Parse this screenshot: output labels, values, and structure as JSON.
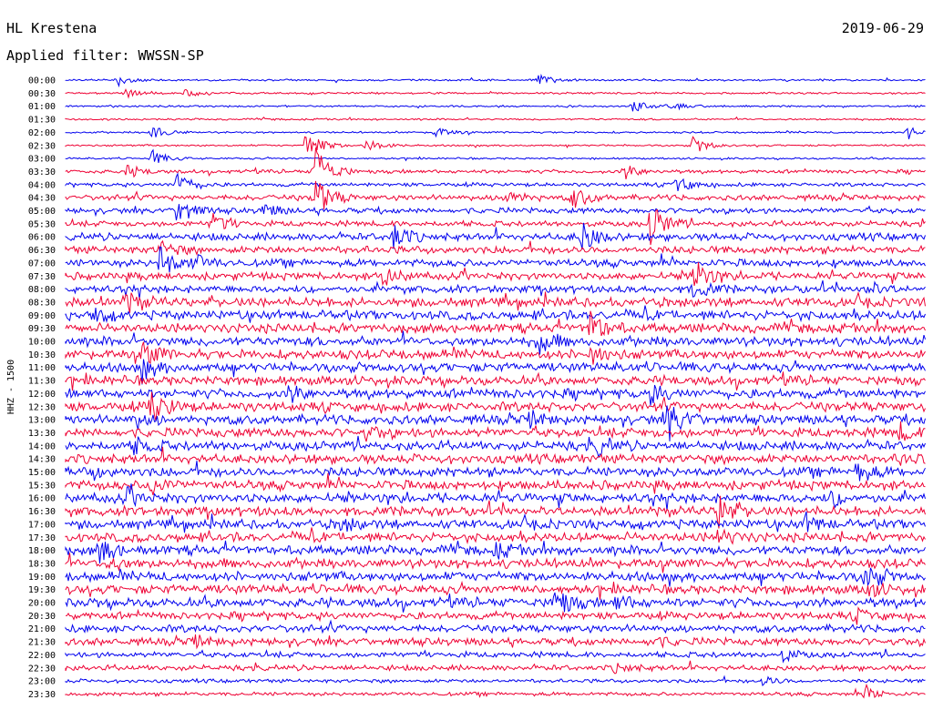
{
  "header": {
    "station": "HL Krestena",
    "date": "2019-06-29",
    "filter": "Applied filter: WWSSN-SP"
  },
  "chart_data": {
    "type": "line",
    "title": "HL Krestena",
    "date": "2019-06-29",
    "filter": "Applied filter: WWSSN-SP",
    "ylabel": "HHZ - 1500",
    "row_labels": [
      "00:00",
      "00:30",
      "01:00",
      "01:30",
      "02:00",
      "02:30",
      "03:00",
      "03:30",
      "04:00",
      "04:30",
      "05:00",
      "05:30",
      "06:00",
      "06:30",
      "07:00",
      "07:30",
      "08:00",
      "08:30",
      "09:00",
      "09:30",
      "10:00",
      "10:30",
      "11:00",
      "11:30",
      "12:00",
      "12:30",
      "13:00",
      "13:30",
      "14:00",
      "14:30",
      "15:00",
      "15:30",
      "16:00",
      "16:30",
      "17:00",
      "17:30",
      "18:00",
      "18:30",
      "19:00",
      "19:30",
      "20:00",
      "20:30",
      "21:00",
      "21:30",
      "22:00",
      "22:30",
      "23:00",
      "23:30"
    ],
    "row_minutes": 30,
    "series_colors": [
      "#0000ee",
      "#ee0033"
    ],
    "noise_level": [
      1,
      1,
      1,
      1,
      1,
      1,
      1,
      2,
      2,
      3,
      3,
      3,
      4,
      4,
      4,
      4,
      4,
      5,
      5,
      5,
      5,
      5,
      5,
      5,
      5,
      5,
      5,
      5,
      5,
      5,
      5,
      5,
      5,
      5,
      5,
      5,
      5,
      5,
      5,
      5,
      5,
      4,
      4,
      4,
      3,
      3,
      2,
      2
    ],
    "events": [
      {
        "row": 0,
        "t": 0.06,
        "amp": 6
      },
      {
        "row": 0,
        "t": 0.55,
        "amp": 6
      },
      {
        "row": 1,
        "t": 0.07,
        "amp": 5
      },
      {
        "row": 1,
        "t": 0.14,
        "amp": 4
      },
      {
        "row": 2,
        "t": 0.66,
        "amp": 6
      },
      {
        "row": 2,
        "t": 0.7,
        "amp": 5
      },
      {
        "row": 4,
        "t": 0.1,
        "amp": 8
      },
      {
        "row": 4,
        "t": 0.43,
        "amp": 6
      },
      {
        "row": 4,
        "t": 0.98,
        "amp": 8
      },
      {
        "row": 5,
        "t": 0.28,
        "amp": 18
      },
      {
        "row": 5,
        "t": 0.35,
        "amp": 8
      },
      {
        "row": 5,
        "t": 0.73,
        "amp": 10
      },
      {
        "row": 6,
        "t": 0.1,
        "amp": 9
      },
      {
        "row": 7,
        "t": 0.07,
        "amp": 7
      },
      {
        "row": 7,
        "t": 0.29,
        "amp": 30
      },
      {
        "row": 7,
        "t": 0.65,
        "amp": 8
      },
      {
        "row": 8,
        "t": 0.13,
        "amp": 14
      },
      {
        "row": 8,
        "t": 0.71,
        "amp": 9
      },
      {
        "row": 9,
        "t": 0.29,
        "amp": 24
      },
      {
        "row": 9,
        "t": 0.51,
        "amp": 10
      },
      {
        "row": 9,
        "t": 0.59,
        "amp": 12
      },
      {
        "row": 10,
        "t": 0.13,
        "amp": 16
      },
      {
        "row": 10,
        "t": 0.23,
        "amp": 8
      },
      {
        "row": 11,
        "t": 0.17,
        "amp": 12
      },
      {
        "row": 11,
        "t": 0.68,
        "amp": 24
      },
      {
        "row": 12,
        "t": 0.38,
        "amp": 14
      },
      {
        "row": 12,
        "t": 0.6,
        "amp": 16
      },
      {
        "row": 13,
        "t": 0.11,
        "amp": 8
      },
      {
        "row": 14,
        "t": 0.11,
        "amp": 18
      },
      {
        "row": 14,
        "t": 0.15,
        "amp": 8
      },
      {
        "row": 15,
        "t": 0.37,
        "amp": 10
      },
      {
        "row": 15,
        "t": 0.73,
        "amp": 18
      },
      {
        "row": 16,
        "t": 0.73,
        "amp": 10
      },
      {
        "row": 16,
        "t": 0.93,
        "amp": 8
      },
      {
        "row": 17,
        "t": 0.07,
        "amp": 10
      },
      {
        "row": 18,
        "t": 0.03,
        "amp": 8
      },
      {
        "row": 19,
        "t": 0.61,
        "amp": 18
      },
      {
        "row": 20,
        "t": 0.55,
        "amp": 12
      },
      {
        "row": 21,
        "t": 0.09,
        "amp": 14
      },
      {
        "row": 21,
        "t": 0.61,
        "amp": 10
      },
      {
        "row": 22,
        "t": 0.09,
        "amp": 10
      },
      {
        "row": 24,
        "t": 0.26,
        "amp": 8
      },
      {
        "row": 24,
        "t": 0.68,
        "amp": 10
      },
      {
        "row": 25,
        "t": 0.1,
        "amp": 20
      },
      {
        "row": 26,
        "t": 0.08,
        "amp": 8
      },
      {
        "row": 26,
        "t": 0.54,
        "amp": 8
      },
      {
        "row": 26,
        "t": 0.7,
        "amp": 22
      },
      {
        "row": 27,
        "t": 0.35,
        "amp": 6
      },
      {
        "row": 27,
        "t": 0.97,
        "amp": 8
      },
      {
        "row": 28,
        "t": 0.08,
        "amp": 8
      },
      {
        "row": 28,
        "t": 0.62,
        "amp": 8
      },
      {
        "row": 29,
        "t": 0.97,
        "amp": 6
      },
      {
        "row": 30,
        "t": 0.03,
        "amp": 6
      },
      {
        "row": 30,
        "t": 0.92,
        "amp": 10
      },
      {
        "row": 31,
        "t": 0.1,
        "amp": 10
      },
      {
        "row": 32,
        "t": 0.07,
        "amp": 8
      },
      {
        "row": 32,
        "t": 0.89,
        "amp": 8
      },
      {
        "row": 33,
        "t": 0.76,
        "amp": 18
      },
      {
        "row": 34,
        "t": 0.32,
        "amp": 7
      },
      {
        "row": 34,
        "t": 0.86,
        "amp": 9
      },
      {
        "row": 35,
        "t": 0.76,
        "amp": 8
      },
      {
        "row": 36,
        "t": 0.04,
        "amp": 14
      },
      {
        "row": 36,
        "t": 0.5,
        "amp": 7
      },
      {
        "row": 37,
        "t": 0.05,
        "amp": 6
      },
      {
        "row": 38,
        "t": 0.93,
        "amp": 14
      },
      {
        "row": 39,
        "t": 0.93,
        "amp": 8
      },
      {
        "row": 40,
        "t": 0.57,
        "amp": 16
      },
      {
        "row": 40,
        "t": 0.64,
        "amp": 8
      },
      {
        "row": 41,
        "t": 0.92,
        "amp": 6
      },
      {
        "row": 43,
        "t": 0.15,
        "amp": 6
      },
      {
        "row": 43,
        "t": 0.68,
        "amp": 6
      },
      {
        "row": 44,
        "t": 0.83,
        "amp": 8
      },
      {
        "row": 45,
        "t": 0.64,
        "amp": 5
      },
      {
        "row": 46,
        "t": 0.81,
        "amp": 5
      },
      {
        "row": 47,
        "t": 0.93,
        "amp": 8
      }
    ]
  }
}
